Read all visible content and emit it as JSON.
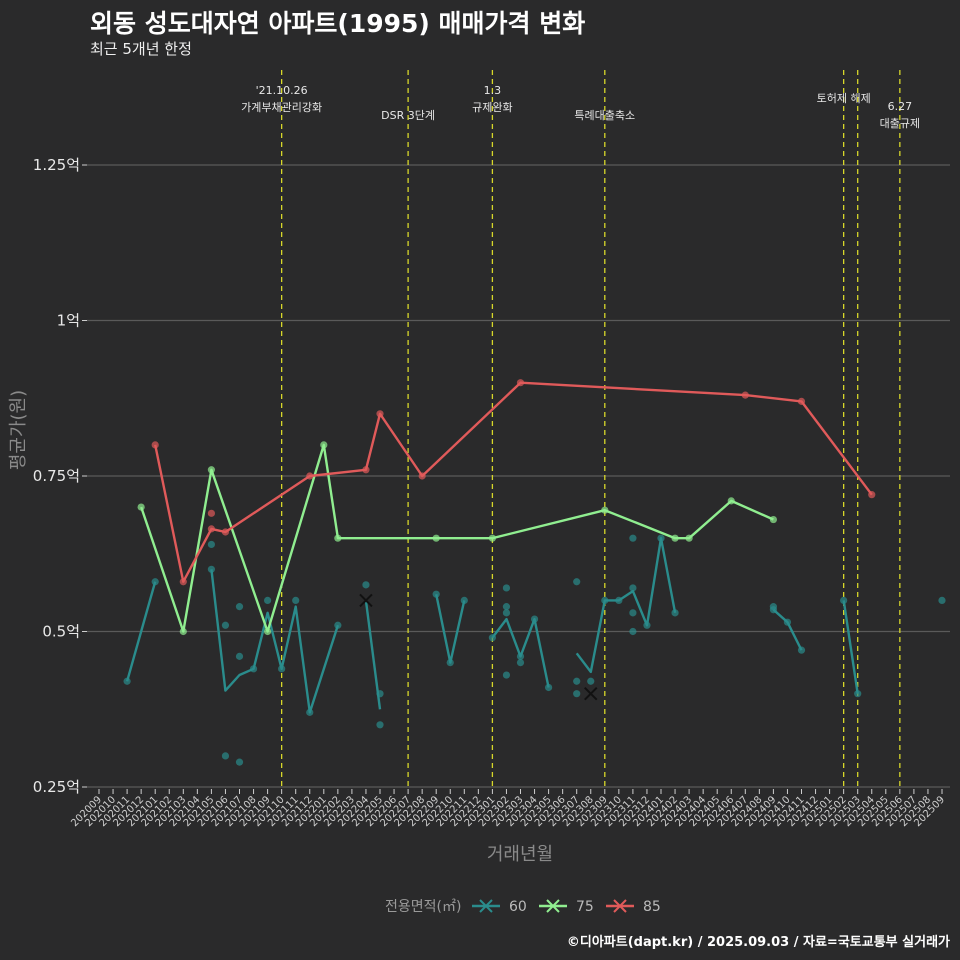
{
  "title": "외동 성도대자연 아파트(1995) 매매가격 변화",
  "subtitle": "최근 5개년 한정",
  "caption": "©디아파트(dapt.kr) / 2025.09.03 / 자료=국토교통부 실거래가",
  "chart_data": {
    "type": "line",
    "xlabel": "거래년월",
    "ylabel": "평균가(원)",
    "ylim": [
      0.25,
      1.25
    ],
    "y_ticks": [
      0.25,
      0.5,
      0.75,
      1.0,
      1.25
    ],
    "y_tick_labels": [
      "0.25억",
      "0.5억",
      "0.75억",
      "1억",
      "1.25억"
    ],
    "categories": [
      "202009",
      "202010",
      "202011",
      "202012",
      "202101",
      "202102",
      "202103",
      "202104",
      "202105",
      "202106",
      "202107",
      "202108",
      "202109",
      "202110",
      "202111",
      "202112",
      "202201",
      "202202",
      "202203",
      "202204",
      "202205",
      "202206",
      "202207",
      "202208",
      "202209",
      "202210",
      "202211",
      "202212",
      "202301",
      "202302",
      "202303",
      "202304",
      "202305",
      "202306",
      "202307",
      "202308",
      "202309",
      "202310",
      "202311",
      "202312",
      "202401",
      "202402",
      "202403",
      "202404",
      "202405",
      "202406",
      "202407",
      "202408",
      "202409",
      "202410",
      "202411",
      "202412",
      "202501",
      "202502",
      "202503",
      "202504",
      "202505",
      "202506",
      "202507",
      "202508",
      "202509"
    ],
    "legend_title": "전용면적(㎡)",
    "series": [
      {
        "name": "60",
        "color": "#2a8c8c",
        "line": [
          [
            2,
            0.42
          ],
          [
            4,
            0.58
          ],
          null,
          [
            8,
            0.6
          ],
          [
            9,
            0.405
          ],
          [
            10,
            0.43
          ],
          [
            11,
            0.44
          ],
          [
            12,
            0.53
          ],
          [
            13,
            0.44
          ],
          [
            14,
            0.54
          ],
          [
            15,
            0.37
          ],
          [
            17,
            0.51
          ],
          null,
          [
            19,
            0.55
          ],
          [
            20,
            0.375
          ],
          null,
          [
            24,
            0.56
          ],
          [
            25,
            0.45
          ],
          [
            26,
            0.55
          ],
          null,
          [
            28,
            0.49
          ],
          [
            29,
            0.52
          ],
          [
            30,
            0.46
          ],
          [
            31,
            0.52
          ],
          [
            32,
            0.41
          ],
          null,
          [
            34,
            0.465
          ],
          [
            35,
            0.435
          ],
          [
            36,
            0.55
          ],
          [
            37,
            0.55
          ],
          [
            38,
            0.565
          ],
          [
            39,
            0.51
          ],
          [
            40,
            0.65
          ],
          [
            41,
            0.53
          ],
          null,
          [
            48,
            0.535
          ],
          [
            49,
            0.515
          ],
          [
            50,
            0.47
          ],
          null,
          [
            53,
            0.55
          ],
          [
            54,
            0.4
          ]
        ],
        "points": [
          [
            2,
            0.42
          ],
          [
            4,
            0.58
          ],
          [
            8,
            0.64
          ],
          [
            8,
            0.6
          ],
          [
            9,
            0.3
          ],
          [
            9,
            0.51
          ],
          [
            10,
            0.29
          ],
          [
            10,
            0.46
          ],
          [
            10,
            0.54
          ],
          [
            11,
            0.44
          ],
          [
            12,
            0.55
          ],
          [
            13,
            0.44
          ],
          [
            14,
            0.55
          ],
          [
            15,
            0.37
          ],
          [
            17,
            0.51
          ],
          [
            19,
            0.575
          ],
          [
            20,
            0.4
          ],
          [
            20,
            0.35
          ],
          [
            24,
            0.56
          ],
          [
            25,
            0.45
          ],
          [
            26,
            0.55
          ],
          [
            28,
            0.49
          ],
          [
            29,
            0.57
          ],
          [
            29,
            0.54
          ],
          [
            29,
            0.53
          ],
          [
            29,
            0.43
          ],
          [
            30,
            0.45
          ],
          [
            30,
            0.46
          ],
          [
            31,
            0.52
          ],
          [
            32,
            0.41
          ],
          [
            34,
            0.58
          ],
          [
            34,
            0.42
          ],
          [
            34,
            0.4
          ],
          [
            35,
            0.42
          ],
          [
            36,
            0.55
          ],
          [
            37,
            0.55
          ],
          [
            38,
            0.65
          ],
          [
            38,
            0.57
          ],
          [
            38,
            0.53
          ],
          [
            38,
            0.5
          ],
          [
            39,
            0.51
          ],
          [
            40,
            0.65
          ],
          [
            41,
            0.53
          ],
          [
            48,
            0.54
          ],
          [
            48,
            0.535
          ],
          [
            49,
            0.515
          ],
          [
            50,
            0.47
          ],
          [
            53,
            0.55
          ],
          [
            54,
            0.4
          ],
          [
            60,
            0.55
          ]
        ],
        "cross_marks": [
          [
            19,
            0.55
          ],
          [
            35,
            0.4
          ]
        ]
      },
      {
        "name": "75",
        "color": "#90ee90",
        "line": [
          [
            3,
            0.7
          ],
          [
            6,
            0.5
          ],
          [
            8,
            0.76
          ],
          [
            12,
            0.5
          ],
          [
            16,
            0.8
          ],
          [
            17,
            0.65
          ],
          [
            24,
            0.65
          ],
          [
            28,
            0.65
          ],
          [
            36,
            0.695
          ],
          [
            41,
            0.65
          ],
          [
            42,
            0.65
          ],
          [
            45,
            0.71
          ],
          [
            48,
            0.68
          ]
        ],
        "points": [
          [
            3,
            0.7
          ],
          [
            6,
            0.5
          ],
          [
            8,
            0.76
          ],
          [
            12,
            0.5
          ],
          [
            16,
            0.8
          ],
          [
            17,
            0.65
          ],
          [
            24,
            0.65
          ],
          [
            28,
            0.65
          ],
          [
            36,
            0.695
          ],
          [
            41,
            0.65
          ],
          [
            42,
            0.65
          ],
          [
            45,
            0.71
          ],
          [
            48,
            0.68
          ]
        ]
      },
      {
        "name": "85",
        "color": "#e05a5a",
        "line": [
          [
            4,
            0.8
          ],
          [
            6,
            0.58
          ],
          [
            8,
            0.665
          ],
          [
            9,
            0.66
          ],
          [
            15,
            0.75
          ],
          [
            19,
            0.76
          ],
          [
            20,
            0.85
          ],
          [
            23,
            0.75
          ],
          [
            30,
            0.9
          ],
          [
            46,
            0.88
          ],
          [
            50,
            0.87
          ],
          [
            55,
            0.72
          ]
        ],
        "points": [
          [
            4,
            0.8
          ],
          [
            6,
            0.58
          ],
          [
            8,
            0.69
          ],
          [
            8,
            0.665
          ],
          [
            9,
            0.66
          ],
          [
            15,
            0.75
          ],
          [
            19,
            0.76
          ],
          [
            20,
            0.85
          ],
          [
            23,
            0.75
          ],
          [
            30,
            0.9
          ],
          [
            46,
            0.88
          ],
          [
            50,
            0.87
          ],
          [
            55,
            0.72
          ]
        ]
      }
    ],
    "events": [
      {
        "x": 13,
        "lines": [
          "'21.10.26",
          "가계부채관리강화"
        ],
        "level": "top"
      },
      {
        "x": 22,
        "lines": [
          "DSR 3단계"
        ],
        "level": "low"
      },
      {
        "x": 28,
        "lines": [
          "1.3",
          "규제완화"
        ],
        "level": "top"
      },
      {
        "x": 36,
        "lines": [
          "특례대출축소"
        ],
        "level": "low"
      },
      {
        "x": 53,
        "lines": [
          "토허제 해제"
        ],
        "level": "mid"
      },
      {
        "x": 54,
        "lines": [
          ""
        ],
        "level": "mid"
      },
      {
        "x": 57,
        "lines": [
          "6.27",
          "대출규제"
        ],
        "level": "right"
      }
    ]
  }
}
